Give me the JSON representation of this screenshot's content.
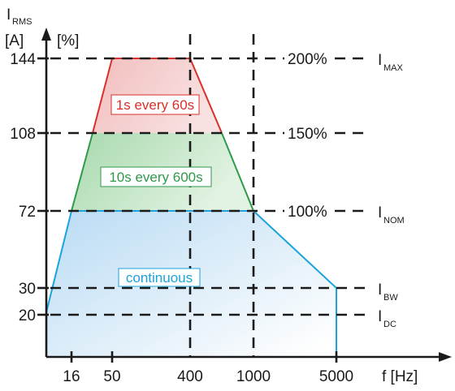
{
  "axes": {
    "y_symbol": "I",
    "y_subscript": "RMS",
    "y_unit_a": "[A]",
    "y_unit_pct": "[%]",
    "x_label": "f [Hz]"
  },
  "y_ticks": [
    {
      "label": "144",
      "value": 144
    },
    {
      "label": "108",
      "value": 108
    },
    {
      "label": "72",
      "value": 72
    },
    {
      "label": "30",
      "value": 30
    },
    {
      "label": "20",
      "value": 20
    }
  ],
  "x_ticks": [
    "16",
    "50",
    "400",
    "1000",
    "5000"
  ],
  "percent_labels": [
    "200%",
    "150%",
    "100%"
  ],
  "current_labels": [
    {
      "symbol": "I",
      "subscript": "MAX"
    },
    {
      "symbol": "I",
      "subscript": "NOM"
    },
    {
      "symbol": "I",
      "subscript": "BW"
    },
    {
      "symbol": "I",
      "subscript": "DC"
    }
  ],
  "regions": [
    {
      "label": "1s every 60s",
      "color": "#d9302a"
    },
    {
      "label": "10s every 600s",
      "color": "#2e9a4a"
    },
    {
      "label": "continuous",
      "color": "#1aa3dd"
    }
  ],
  "colors": {
    "red_fill": "#e9a3a3",
    "green_fill": "#aadbb0",
    "blue_fill": "#c7e3f6",
    "axis": "#1a1a1a"
  }
}
